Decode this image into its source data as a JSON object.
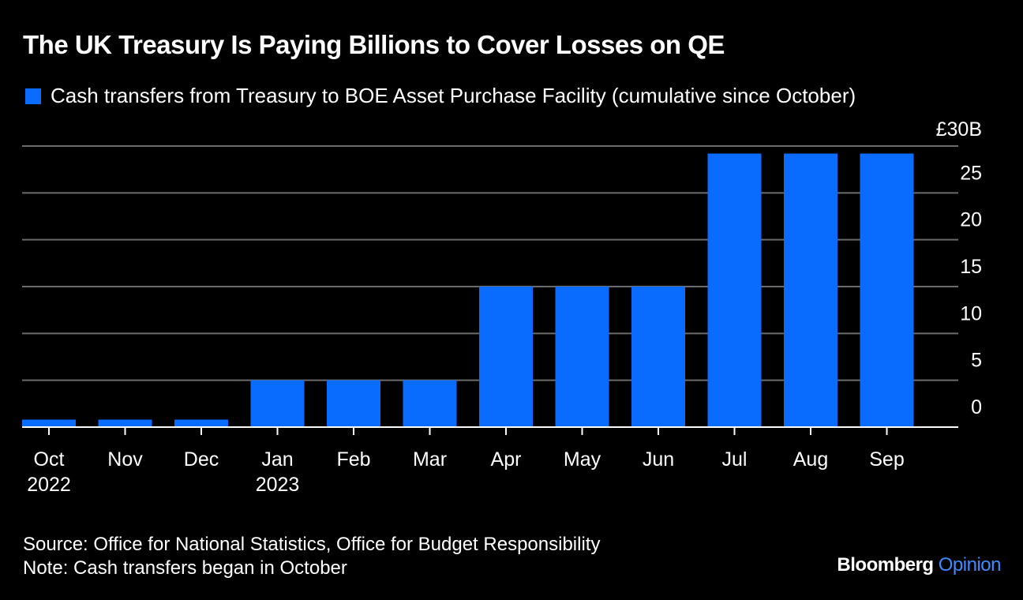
{
  "title": "The UK Treasury Is Paying Billions to Cover Losses on QE",
  "legend": {
    "label": "Cash transfers from Treasury to BOE Asset Purchase Facility (cumulative since October)",
    "color": "#0a6cff"
  },
  "footer": {
    "source": "Source: Office for National Statistics, Office for Budget Responsibility",
    "note": "Note: Cash transfers began in October"
  },
  "brand": {
    "name": "Bloomberg",
    "section": "Opinion"
  },
  "chart_data": {
    "type": "bar",
    "categories": [
      "Oct",
      "Nov",
      "Dec",
      "Jan",
      "Feb",
      "Mar",
      "Apr",
      "May",
      "Jun",
      "Jul",
      "Aug",
      "Sep"
    ],
    "category_sublabels": [
      "2022",
      "",
      "",
      "2023",
      "",
      "",
      "",
      "",
      "",
      "",
      "",
      ""
    ],
    "series": [
      {
        "name": "Cash transfers from Treasury to BOE Asset Purchase Facility (cumulative since October)",
        "values": [
          0.8,
          0.8,
          0.8,
          5,
          5,
          5,
          15,
          15,
          15,
          29.2,
          29.2,
          29.2
        ]
      }
    ],
    "ylim": [
      0,
      30
    ],
    "yticks": [
      0,
      5,
      10,
      15,
      20,
      25,
      30
    ],
    "ytick_labels": [
      "0",
      "5",
      "10",
      "15",
      "20",
      "25",
      "£30B"
    ],
    "yaxis_side": "right",
    "grid": true
  }
}
